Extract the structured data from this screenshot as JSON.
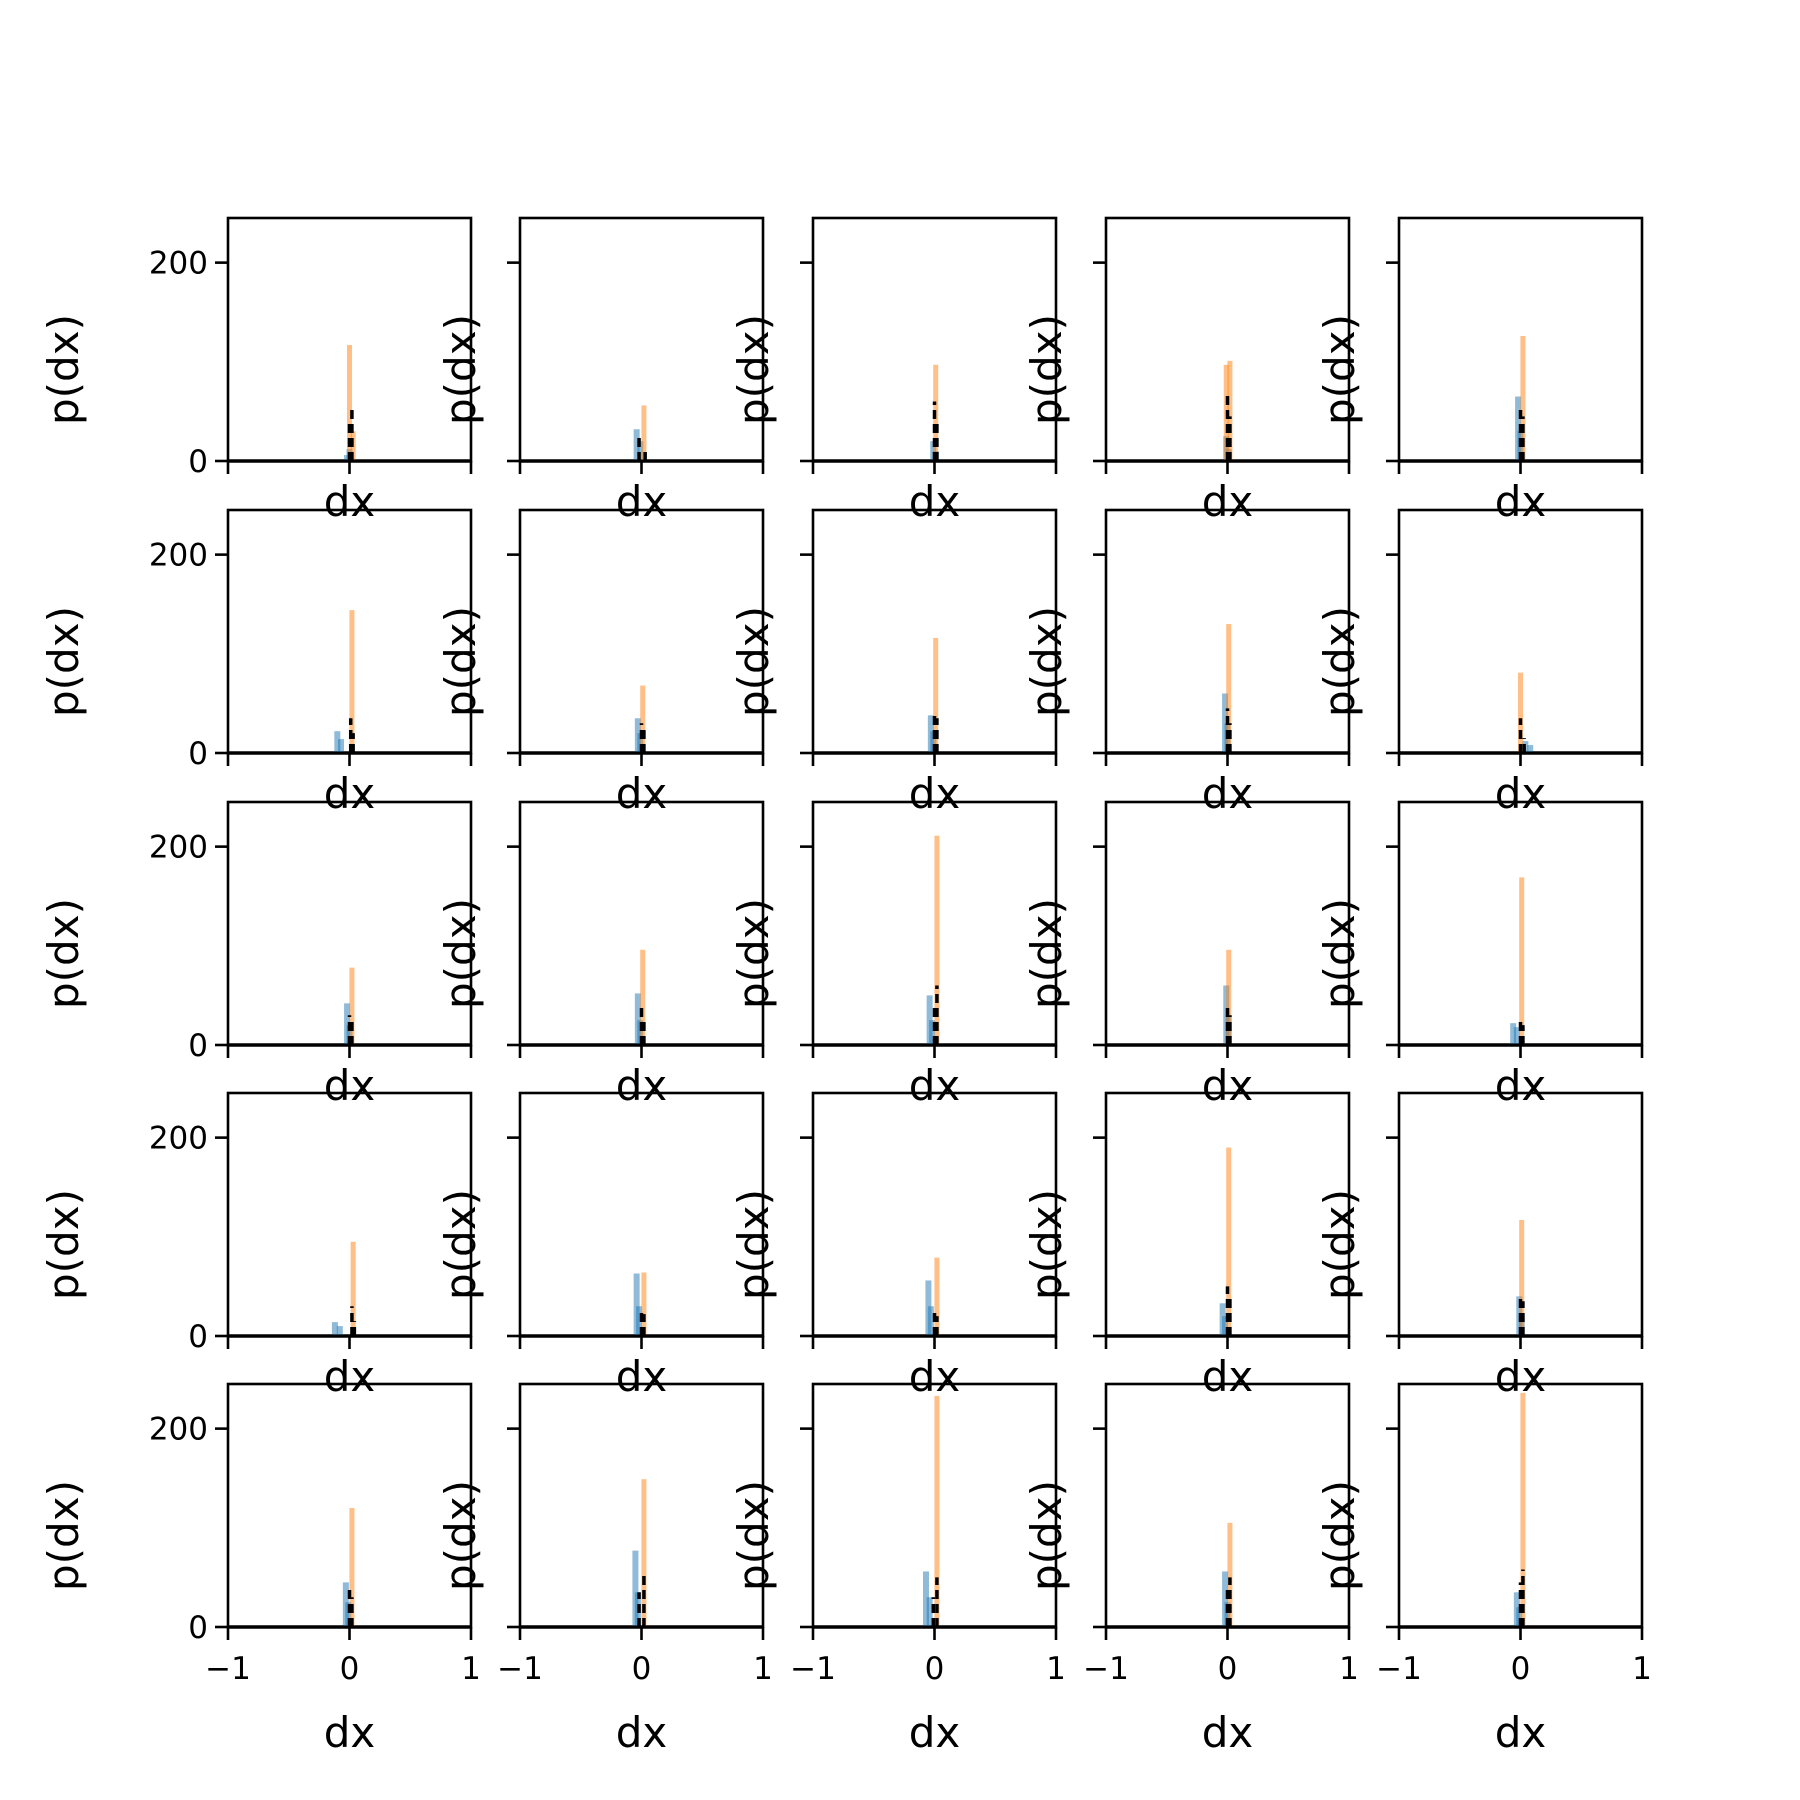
{
  "colors": {
    "blue": "#1f77b4",
    "orange": "#ff7f0e",
    "black": "#000000",
    "background": "#ffffff"
  },
  "chart_data": {
    "type": "histogram-grid",
    "rows": 5,
    "cols": 5,
    "xlabel": "dx",
    "ylabel": "p(dx)",
    "xlim": [
      -1,
      1
    ],
    "ylim": [
      0,
      245
    ],
    "xticks": [
      -1,
      0,
      1
    ],
    "xtick_labels": [
      "−1",
      "0",
      "1"
    ],
    "yticks": [
      0,
      200
    ],
    "ytick_labels": [
      "0",
      "200"
    ],
    "series": [
      {
        "name": "",
        "color": "#1f77b4",
        "style": "filled"
      },
      {
        "name": "",
        "color": "#ff7f0e",
        "style": "filled"
      },
      {
        "name": "",
        "color": "#000000",
        "style": "dashed"
      }
    ],
    "panels": [
      {
        "blue": [
          {
            "x": -0.02,
            "h": 6
          },
          {
            "x": 0.0,
            "h": 12
          }
        ],
        "orange": [
          {
            "x": 0.0,
            "h": 117
          },
          {
            "x": 0.03,
            "h": 30
          }
        ],
        "black": [
          {
            "x": 0.0,
            "h": 40
          },
          {
            "x": 0.02,
            "h": 55
          }
        ]
      },
      {
        "blue": [
          {
            "x": -0.04,
            "h": 32
          },
          {
            "x": -0.01,
            "h": 20
          }
        ],
        "orange": [
          {
            "x": 0.02,
            "h": 56
          }
        ],
        "black": [
          {
            "x": -0.02,
            "h": 28
          },
          {
            "x": 0.03,
            "h": 12
          }
        ]
      },
      {
        "blue": [
          {
            "x": -0.01,
            "h": 20
          },
          {
            "x": 0.01,
            "h": 10
          }
        ],
        "orange": [
          {
            "x": 0.01,
            "h": 97
          }
        ],
        "black": [
          {
            "x": 0.0,
            "h": 60
          },
          {
            "x": 0.02,
            "h": 40
          }
        ]
      },
      {
        "blue": [
          {
            "x": -0.01,
            "h": 25
          },
          {
            "x": 0.01,
            "h": 12
          }
        ],
        "orange": [
          {
            "x": -0.01,
            "h": 97
          },
          {
            "x": 0.02,
            "h": 101
          }
        ],
        "black": [
          {
            "x": 0.0,
            "h": 67
          },
          {
            "x": 0.02,
            "h": 45
          }
        ]
      },
      {
        "blue": [
          {
            "x": -0.02,
            "h": 65
          },
          {
            "x": 0.0,
            "h": 30
          }
        ],
        "orange": [
          {
            "x": 0.02,
            "h": 126
          }
        ],
        "black": [
          {
            "x": 0.0,
            "h": 55
          },
          {
            "x": 0.02,
            "h": 45
          }
        ]
      },
      {
        "blue": [
          {
            "x": -0.1,
            "h": 22
          },
          {
            "x": -0.07,
            "h": 14
          }
        ],
        "orange": [
          {
            "x": 0.02,
            "h": 144
          }
        ],
        "black": [
          {
            "x": 0.01,
            "h": 35
          },
          {
            "x": 0.03,
            "h": 20
          }
        ]
      },
      {
        "blue": [
          {
            "x": -0.03,
            "h": 35
          },
          {
            "x": -0.01,
            "h": 20
          }
        ],
        "orange": [
          {
            "x": 0.01,
            "h": 68
          }
        ],
        "black": [
          {
            "x": 0.0,
            "h": 30
          },
          {
            "x": 0.02,
            "h": 25
          }
        ]
      },
      {
        "blue": [
          {
            "x": -0.03,
            "h": 38
          },
          {
            "x": -0.01,
            "h": 22
          }
        ],
        "orange": [
          {
            "x": 0.01,
            "h": 116
          }
        ],
        "black": [
          {
            "x": 0.0,
            "h": 42
          },
          {
            "x": 0.02,
            "h": 35
          }
        ]
      },
      {
        "blue": [
          {
            "x": -0.02,
            "h": 60
          },
          {
            "x": 0.0,
            "h": 30
          }
        ],
        "orange": [
          {
            "x": 0.01,
            "h": 130
          }
        ],
        "black": [
          {
            "x": 0.0,
            "h": 45
          },
          {
            "x": 0.02,
            "h": 30
          }
        ]
      },
      {
        "blue": [
          {
            "x": 0.04,
            "h": 12
          },
          {
            "x": 0.08,
            "h": 8
          }
        ],
        "orange": [
          {
            "x": 0.0,
            "h": 81
          }
        ],
        "black": [
          {
            "x": 0.0,
            "h": 35
          },
          {
            "x": 0.03,
            "h": 15
          }
        ]
      },
      {
        "blue": [
          {
            "x": -0.02,
            "h": 42
          },
          {
            "x": 0.0,
            "h": 20
          }
        ],
        "orange": [
          {
            "x": 0.02,
            "h": 78
          }
        ],
        "black": [
          {
            "x": 0.0,
            "h": 30
          },
          {
            "x": 0.02,
            "h": 25
          }
        ]
      },
      {
        "blue": [
          {
            "x": -0.03,
            "h": 52
          },
          {
            "x": -0.01,
            "h": 25
          }
        ],
        "orange": [
          {
            "x": 0.01,
            "h": 96
          }
        ],
        "black": [
          {
            "x": 0.0,
            "h": 38
          },
          {
            "x": 0.02,
            "h": 25
          }
        ]
      },
      {
        "blue": [
          {
            "x": -0.04,
            "h": 50
          },
          {
            "x": -0.02,
            "h": 25
          }
        ],
        "orange": [
          {
            "x": 0.02,
            "h": 211
          }
        ],
        "black": [
          {
            "x": 0.0,
            "h": 40
          },
          {
            "x": 0.02,
            "h": 60
          }
        ]
      },
      {
        "blue": [
          {
            "x": -0.01,
            "h": 60
          },
          {
            "x": 0.01,
            "h": 30
          }
        ],
        "orange": [
          {
            "x": 0.01,
            "h": 96
          }
        ],
        "black": [
          {
            "x": 0.0,
            "h": 38
          },
          {
            "x": 0.02,
            "h": 30
          }
        ]
      },
      {
        "blue": [
          {
            "x": -0.06,
            "h": 22
          },
          {
            "x": -0.03,
            "h": 18
          }
        ],
        "orange": [
          {
            "x": 0.01,
            "h": 169
          }
        ],
        "black": [
          {
            "x": 0.0,
            "h": 25
          },
          {
            "x": 0.02,
            "h": 20
          }
        ]
      },
      {
        "blue": [
          {
            "x": -0.12,
            "h": 14
          },
          {
            "x": -0.08,
            "h": 10
          }
        ],
        "orange": [
          {
            "x": 0.03,
            "h": 95
          }
        ],
        "black": [
          {
            "x": 0.02,
            "h": 30
          },
          {
            "x": 0.04,
            "h": 15
          }
        ]
      },
      {
        "blue": [
          {
            "x": -0.04,
            "h": 63
          },
          {
            "x": -0.02,
            "h": 30
          }
        ],
        "orange": [
          {
            "x": 0.02,
            "h": 64
          }
        ],
        "black": [
          {
            "x": 0.0,
            "h": 28
          },
          {
            "x": 0.02,
            "h": 22
          }
        ]
      },
      {
        "blue": [
          {
            "x": -0.05,
            "h": 56
          },
          {
            "x": -0.03,
            "h": 30
          }
        ],
        "orange": [
          {
            "x": 0.02,
            "h": 79
          }
        ],
        "black": [
          {
            "x": 0.0,
            "h": 28
          },
          {
            "x": 0.02,
            "h": 20
          }
        ]
      },
      {
        "blue": [
          {
            "x": -0.04,
            "h": 33
          },
          {
            "x": -0.02,
            "h": 20
          }
        ],
        "orange": [
          {
            "x": 0.01,
            "h": 190
          }
        ],
        "black": [
          {
            "x": 0.0,
            "h": 50
          },
          {
            "x": 0.02,
            "h": 40
          }
        ]
      },
      {
        "blue": [
          {
            "x": -0.01,
            "h": 40
          },
          {
            "x": 0.01,
            "h": 20
          }
        ],
        "orange": [
          {
            "x": 0.01,
            "h": 117
          }
        ],
        "black": [
          {
            "x": 0.0,
            "h": 42
          },
          {
            "x": 0.02,
            "h": 35
          }
        ]
      },
      {
        "blue": [
          {
            "x": -0.03,
            "h": 45
          },
          {
            "x": -0.01,
            "h": 25
          }
        ],
        "orange": [
          {
            "x": 0.02,
            "h": 120
          }
        ],
        "black": [
          {
            "x": 0.0,
            "h": 38
          },
          {
            "x": 0.02,
            "h": 30
          }
        ]
      },
      {
        "blue": [
          {
            "x": -0.05,
            "h": 77
          },
          {
            "x": -0.03,
            "h": 35
          }
        ],
        "orange": [
          {
            "x": 0.02,
            "h": 149
          }
        ],
        "black": [
          {
            "x": -0.02,
            "h": 35
          },
          {
            "x": 0.02,
            "h": 55
          }
        ]
      },
      {
        "blue": [
          {
            "x": -0.07,
            "h": 56
          },
          {
            "x": -0.04,
            "h": 30
          }
        ],
        "orange": [
          {
            "x": 0.02,
            "h": 233
          }
        ],
        "black": [
          {
            "x": -0.01,
            "h": 30
          },
          {
            "x": 0.02,
            "h": 50
          }
        ]
      },
      {
        "blue": [
          {
            "x": -0.02,
            "h": 56
          },
          {
            "x": 0.0,
            "h": 25
          }
        ],
        "orange": [
          {
            "x": 0.02,
            "h": 105
          }
        ],
        "black": [
          {
            "x": 0.0,
            "h": 40
          },
          {
            "x": 0.02,
            "h": 50
          }
        ]
      },
      {
        "blue": [
          {
            "x": -0.03,
            "h": 35
          },
          {
            "x": -0.01,
            "h": 20
          }
        ],
        "orange": [
          {
            "x": 0.02,
            "h": 236
          }
        ],
        "black": [
          {
            "x": 0.0,
            "h": 45
          },
          {
            "x": 0.02,
            "h": 58
          }
        ]
      }
    ]
  }
}
